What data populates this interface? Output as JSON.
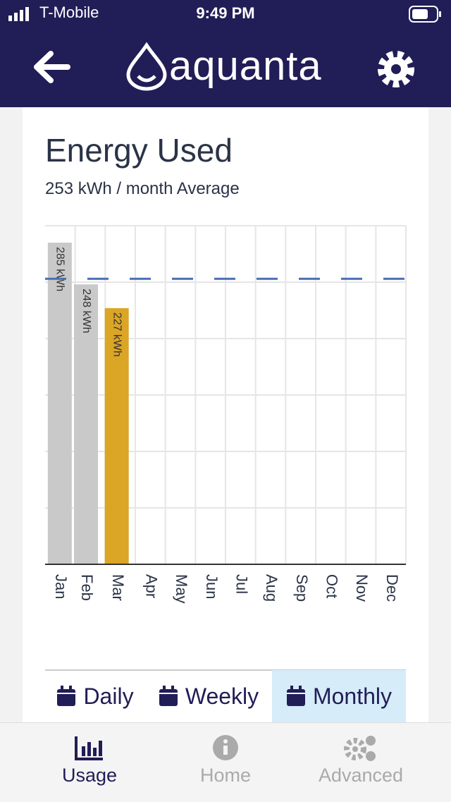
{
  "status_bar": {
    "carrier": "T-Mobile",
    "time": "9:49 PM"
  },
  "header": {
    "brand": "aquanta"
  },
  "card": {
    "title": "Energy Used",
    "subtitle": "253 kWh / month Average"
  },
  "chart_data": {
    "type": "bar",
    "categories": [
      "Jan",
      "Feb",
      "Mar",
      "Apr",
      "May",
      "Jun",
      "Jul",
      "Aug",
      "Sep",
      "Oct",
      "Nov",
      "Dec"
    ],
    "values": [
      285,
      248,
      227,
      null,
      null,
      null,
      null,
      null,
      null,
      null,
      null,
      null
    ],
    "value_labels": [
      "285 kWh",
      "248 kWh",
      "227 kWh",
      null,
      null,
      null,
      null,
      null,
      null,
      null,
      null,
      null
    ],
    "colors": [
      "#c9c9c9",
      "#c9c9c9",
      "#dba526",
      null,
      null,
      null,
      null,
      null,
      null,
      null,
      null,
      null
    ],
    "average": 253,
    "average_color": "#4a6db3",
    "ylim": [
      0,
      300
    ],
    "yticks": [
      0,
      50,
      100,
      150,
      200,
      250,
      300
    ],
    "grid": true
  },
  "toggle": {
    "options": [
      "Daily",
      "Weekly",
      "Monthly"
    ],
    "selected": 2
  },
  "tabs": {
    "items": [
      "Usage",
      "Home",
      "Advanced"
    ],
    "active": 0
  }
}
